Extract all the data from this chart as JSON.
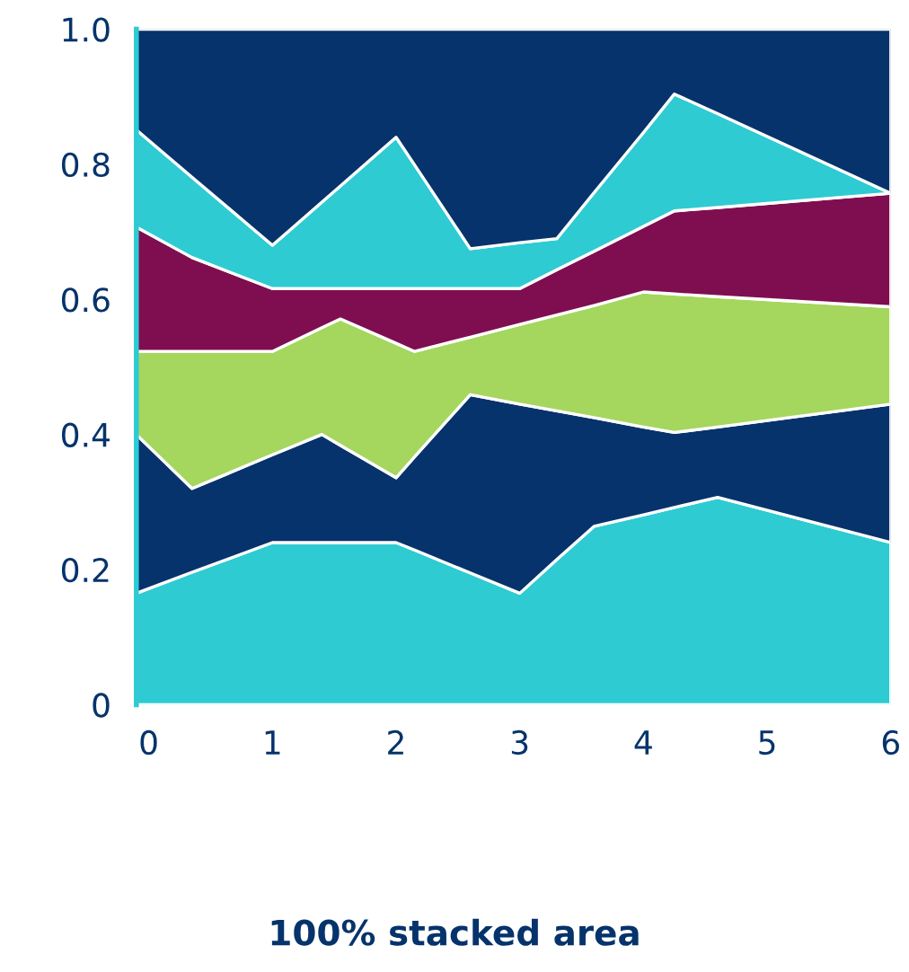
{
  "chart_data": {
    "type": "area",
    "stacked": true,
    "title": "100% stacked area",
    "x": [
      -0.1,
      0.35,
      1,
      1.4,
      1.55,
      2,
      2.15,
      2.6,
      3,
      3.3,
      3.6,
      4,
      4.25,
      4.6,
      6
    ],
    "series": [
      {
        "color": "#2ecbd3",
        "values": [
          0.165,
          0.196,
          0.24,
          0.24,
          0.24,
          0.24,
          0.229,
          0.195,
          0.165,
          0.215,
          0.264,
          0.281,
          0.292,
          0.307,
          0.24
        ]
      },
      {
        "color": "#06336b",
        "values": [
          0.235,
          0.124,
          0.13,
          0.16,
          0.144,
          0.096,
          0.138,
          0.264,
          0.28,
          0.22,
          0.161,
          0.13,
          0.111,
          0.104,
          0.205
        ]
      },
      {
        "color": "#a5d65e",
        "values": [
          0.123,
          0.203,
          0.153,
          0.158,
          0.187,
          0.199,
          0.156,
          0.085,
          0.118,
          0.142,
          0.166,
          0.2,
          0.205,
          0.193,
          0.144
        ]
      },
      {
        "color": "#7f0e50",
        "values": [
          0.184,
          0.139,
          0.093,
          0.058,
          0.045,
          0.081,
          0.093,
          0.072,
          0.053,
          0.067,
          0.08,
          0.097,
          0.123,
          0.132,
          0.168
        ]
      },
      {
        "color": "#2ecbd3",
        "values": [
          0.144,
          0.119,
          0.064,
          0.128,
          0.152,
          0.224,
          0.183,
          0.059,
          0.068,
          0.046,
          0.087,
          0.139,
          0.173,
          0.139,
          0.0
        ]
      },
      {
        "color": "#06336b",
        "values": [
          0.149,
          0.219,
          0.32,
          0.256,
          0.232,
          0.16,
          0.201,
          0.325,
          0.316,
          0.31,
          0.242,
          0.153,
          0.096,
          0.125,
          0.243
        ]
      }
    ],
    "xlim": [
      -0.1,
      6
    ],
    "ylim": [
      0,
      1
    ],
    "xticks": [
      0,
      1,
      2,
      3,
      4,
      5,
      6
    ],
    "yticks": [
      0,
      0.2,
      0.4,
      0.6,
      0.8,
      {
        "value": 1,
        "label": "1.0"
      }
    ],
    "grid": false,
    "legend": false
  }
}
